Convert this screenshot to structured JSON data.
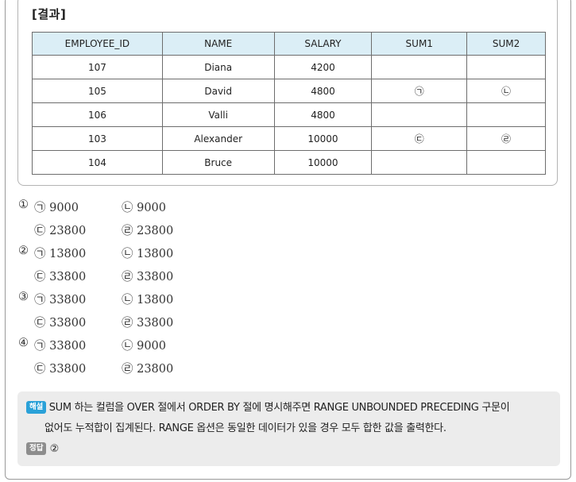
{
  "result_title": "[결과]",
  "table": {
    "headers": [
      "EMPLOYEE_ID",
      "NAME",
      "SALARY",
      "SUM1",
      "SUM2"
    ],
    "rows": [
      [
        "107",
        "Diana",
        "4200",
        "",
        ""
      ],
      [
        "105",
        "David",
        "4800",
        "㉠",
        "㉡"
      ],
      [
        "106",
        "Valli",
        "4800",
        "",
        ""
      ],
      [
        "103",
        "Alexander",
        "10000",
        "㉢",
        "㉣"
      ],
      [
        "104",
        "Bruce",
        "10000",
        "",
        ""
      ]
    ]
  },
  "options": [
    {
      "num": "①",
      "a": "㉠ 9000",
      "b": "㉡ 9000",
      "c": "㉢ 23800",
      "d": "㉣ 23800"
    },
    {
      "num": "②",
      "a": "㉠ 13800",
      "b": "㉡ 13800",
      "c": "㉢ 33800",
      "d": "㉣ 33800"
    },
    {
      "num": "③",
      "a": "㉠ 33800",
      "b": "㉡ 13800",
      "c": "㉢ 33800",
      "d": "㉣ 33800"
    },
    {
      "num": "④",
      "a": "㉠ 33800",
      "b": "㉡ 9000",
      "c": "㉢ 33800",
      "d": "㉣ 23800"
    }
  ],
  "explanation": {
    "badge": "해설",
    "line1": "SUM 하는 컬럼을 OVER 절에서 ORDER BY 절에 명시해주면 RANGE UNBOUNDED PRECEDING 구문이",
    "line2": "없어도 누적합이 집계된다. RANGE 옵션은 동일한 데이터가 있을 경우 모두 합한 값을 출력한다."
  },
  "answer": {
    "badge": "정답",
    "value": "②"
  },
  "colors": {
    "header_bg": "#dbeef6",
    "explain_bg": "#ececec",
    "badge_blue": "#2aa1d8",
    "badge_gray": "#8d8d8d"
  }
}
